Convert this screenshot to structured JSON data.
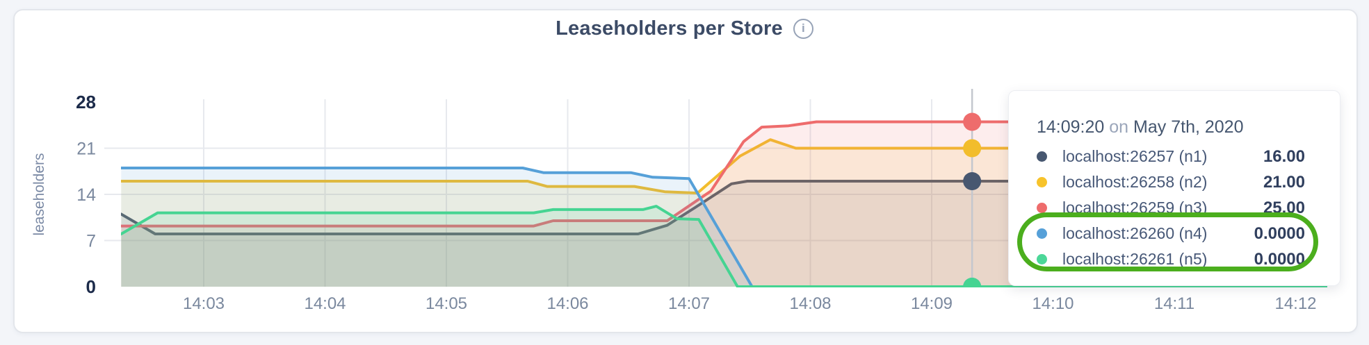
{
  "page": {
    "background": "#f3f5f9"
  },
  "panel": {
    "background": "#ffffff",
    "border_color": "#e3e6eb"
  },
  "header": {
    "title": "Leaseholders per Store",
    "info_icon": "info"
  },
  "chart_data": {
    "type": "area",
    "title": "Leaseholders per Store",
    "xlabel": "",
    "ylabel": "leaseholders",
    "ylim": [
      0,
      28
    ],
    "y_ticks": [
      0,
      7,
      14,
      21,
      28
    ],
    "x_ticks": [
      "14:03",
      "14:04",
      "14:05",
      "14:06",
      "14:07",
      "14:08",
      "14:09",
      "14:10",
      "14:11",
      "14:12"
    ],
    "x_tick_minutes": [
      3,
      4,
      5,
      6,
      7,
      8,
      9,
      10,
      11,
      12
    ],
    "grid": true,
    "legend_position": "none",
    "grid_color": "#e7e9ee",
    "series": [
      {
        "name": "localhost:26257 (n1)",
        "color": "#475770",
        "points": [
          [
            2.32,
            11
          ],
          [
            2.6,
            8
          ],
          [
            6.58,
            8
          ],
          [
            6.82,
            9.3
          ],
          [
            7.05,
            12
          ],
          [
            7.35,
            15.6
          ],
          [
            7.48,
            16
          ],
          [
            12.26,
            16
          ]
        ]
      },
      {
        "name": "localhost:26258 (n2)",
        "color": "#f2bd2c",
        "points": [
          [
            2.32,
            16
          ],
          [
            5.67,
            16
          ],
          [
            5.83,
            15.2
          ],
          [
            6.55,
            15.2
          ],
          [
            6.8,
            14.4
          ],
          [
            7.07,
            14.2
          ],
          [
            7.42,
            19.8
          ],
          [
            7.67,
            22.3
          ],
          [
            7.88,
            21
          ],
          [
            12.26,
            21
          ]
        ]
      },
      {
        "name": "localhost:26259 (n3)",
        "color": "#ee6c6c",
        "points": [
          [
            2.32,
            9.2
          ],
          [
            5.72,
            9.2
          ],
          [
            5.88,
            10
          ],
          [
            6.82,
            10
          ],
          [
            7.18,
            14.5
          ],
          [
            7.45,
            22
          ],
          [
            7.6,
            24.2
          ],
          [
            7.82,
            24.4
          ],
          [
            8.05,
            25
          ],
          [
            12.26,
            25
          ]
        ]
      },
      {
        "name": "localhost:26260 (n4)",
        "color": "#56a0d8",
        "points": [
          [
            2.32,
            18
          ],
          [
            5.63,
            18
          ],
          [
            5.8,
            17.3
          ],
          [
            6.52,
            17.3
          ],
          [
            6.7,
            16.6
          ],
          [
            7.0,
            16.4
          ],
          [
            7.52,
            0
          ],
          [
            12.26,
            0
          ]
        ]
      },
      {
        "name": "localhost:26261 (n5)",
        "color": "#45d492",
        "points": [
          [
            2.32,
            8
          ],
          [
            2.62,
            11.2
          ],
          [
            5.72,
            11.2
          ],
          [
            5.88,
            11.7
          ],
          [
            6.62,
            11.7
          ],
          [
            6.73,
            12.2
          ],
          [
            6.9,
            10.3
          ],
          [
            7.08,
            10.2
          ],
          [
            7.4,
            0
          ],
          [
            12.26,
            0
          ]
        ]
      }
    ],
    "hover": {
      "time_label": "14:09:20",
      "time_minutes": 9.3333,
      "values": [
        16,
        21,
        25,
        0,
        0
      ],
      "line_color": "#c4c7ce"
    }
  },
  "tooltip": {
    "time": "14:09:20",
    "on_word": "on",
    "date": "May 7th, 2020",
    "rows": [
      {
        "label": "localhost:26257 (n1)",
        "value": "16.00",
        "color": "#475770"
      },
      {
        "label": "localhost:26258 (n2)",
        "value": "21.00",
        "color": "#f7c32b"
      },
      {
        "label": "localhost:26259 (n3)",
        "value": "25.00",
        "color": "#ee6c6c"
      },
      {
        "label": "localhost:26260 (n4)",
        "value": "0.0000",
        "color": "#56a0d8"
      },
      {
        "label": "localhost:26261 (n5)",
        "value": "0.0000",
        "color": "#4cd798"
      }
    ]
  },
  "annotation": {
    "shape": "ellipse-outline",
    "color": "#4bae1d"
  }
}
